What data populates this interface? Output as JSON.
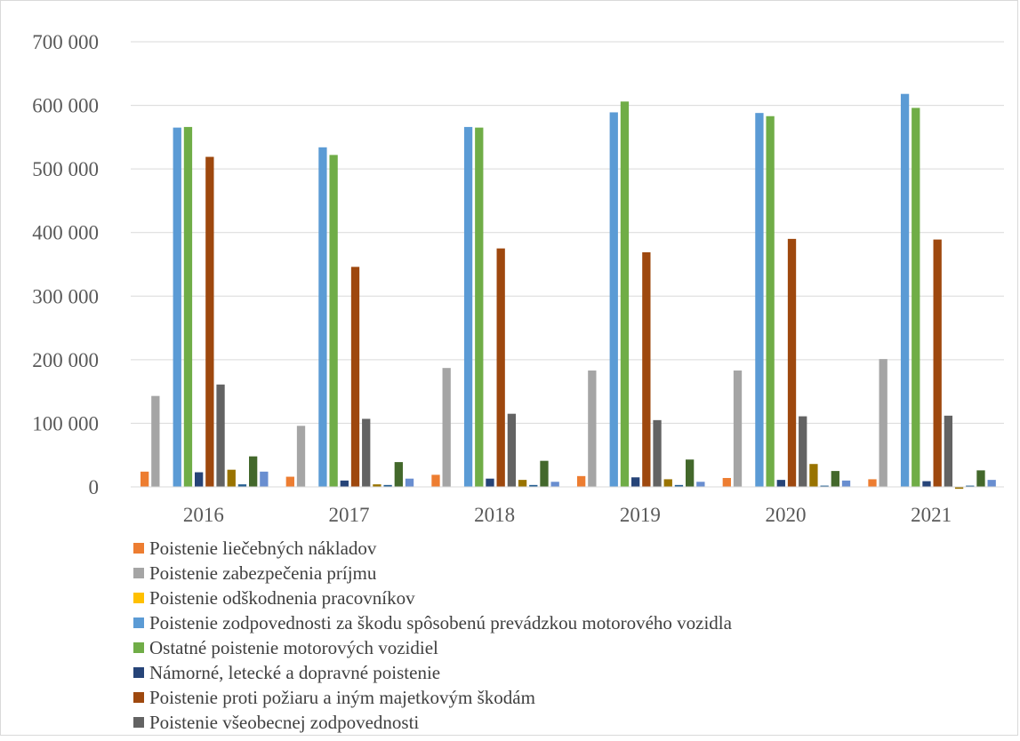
{
  "chart_data": {
    "type": "bar",
    "categories": [
      "2016",
      "2017",
      "2018",
      "2019",
      "2020",
      "2021"
    ],
    "ylim": [
      0,
      700000
    ],
    "yticks": [
      0,
      100000,
      200000,
      300000,
      400000,
      500000,
      600000,
      700000
    ],
    "ytick_labels": [
      "0",
      "100 000",
      "200 000",
      "300 000",
      "400 000",
      "500 000",
      "600 000",
      "700 000"
    ],
    "grid": true,
    "legend_position": "bottom",
    "series": [
      {
        "name": "Poistenie liečebných nákladov",
        "color": "#ED7D31",
        "values": [
          24000,
          16000,
          19000,
          17000,
          14000,
          12000
        ]
      },
      {
        "name": "Poistenie zabezpečenia príjmu",
        "color": "#A5A5A5",
        "values": [
          143000,
          96000,
          187000,
          183000,
          183000,
          201000
        ]
      },
      {
        "name": "Poistenie odškodnenia pracovníkov",
        "color": "#FFC000",
        "values": [
          0,
          0,
          0,
          0,
          0,
          0
        ]
      },
      {
        "name": "Poistenie zodpovednosti za škodu spôsobenú prevádzkou motorového vozidla",
        "color": "#5B9BD5",
        "values": [
          565000,
          534000,
          566000,
          589000,
          588000,
          618000
        ]
      },
      {
        "name": "Ostatné poistenie motorových vozidiel",
        "color": "#70AD47",
        "values": [
          566000,
          522000,
          565000,
          606000,
          583000,
          596000
        ]
      },
      {
        "name": "Námorné, letecké a dopravné poistenie",
        "color": "#264478",
        "values": [
          23000,
          10000,
          13000,
          15000,
          11000,
          9000
        ]
      },
      {
        "name": "Poistenie proti požiaru a iným majetkovým škodám",
        "color": "#9E480E",
        "values": [
          519000,
          346000,
          375000,
          369000,
          390000,
          389000
        ]
      },
      {
        "name": "Poistenie všeobecnej zodpovednosti",
        "color": "#636363",
        "values": [
          161000,
          107000,
          115000,
          105000,
          111000,
          112000
        ]
      },
      {
        "name": "",
        "color": "#997300",
        "values": [
          27000,
          4000,
          11000,
          12000,
          36000,
          -3000
        ]
      },
      {
        "name": "",
        "color": "#255E91",
        "values": [
          4000,
          3000,
          3000,
          3000,
          2000,
          2000
        ]
      },
      {
        "name": "",
        "color": "#43682B",
        "values": [
          48000,
          39000,
          41000,
          43000,
          25000,
          26000
        ]
      },
      {
        "name": "",
        "color": "#698ED0",
        "values": [
          24000,
          13000,
          8000,
          8000,
          10000,
          11000
        ]
      }
    ]
  }
}
